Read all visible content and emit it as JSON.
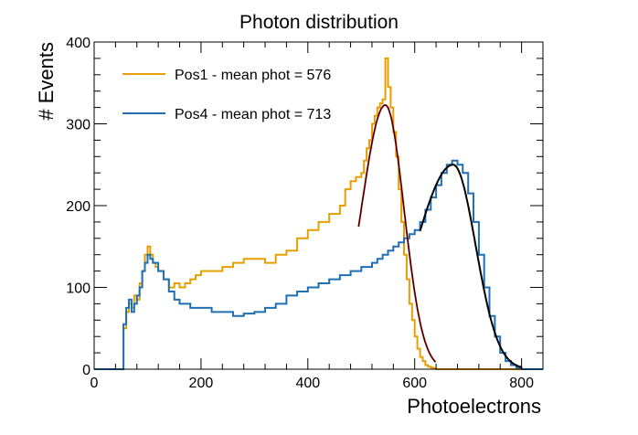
{
  "chart_data": {
    "type": "line",
    "subtype": "step-histogram",
    "title": "Photon distribution",
    "xlabel": "Photoelectrons",
    "ylabel": "# Events",
    "xlim": [
      0,
      840
    ],
    "ylim": [
      0,
      400
    ],
    "xticks": [
      0,
      200,
      400,
      600,
      800
    ],
    "yticks": [
      0,
      100,
      200,
      300,
      400
    ],
    "xtick_labels": [
      "0",
      "200",
      "400",
      "600",
      "800"
    ],
    "ytick_labels": [
      "0",
      "100",
      "200",
      "300",
      "400"
    ],
    "grid": false,
    "legend_position": "top-left",
    "colors": {
      "pos1": "#E69F00",
      "pos4": "#1F6FB4",
      "fit_black": "#000000",
      "fit_red": "#E02020"
    },
    "series": [
      {
        "name": "Pos1 - mean phot = 576",
        "color": "#E69F00",
        "x": [
          0,
          50,
          55,
          60,
          65,
          70,
          75,
          80,
          85,
          90,
          95,
          100,
          105,
          110,
          115,
          120,
          130,
          140,
          150,
          160,
          170,
          180,
          190,
          200,
          220,
          240,
          260,
          280,
          300,
          320,
          340,
          360,
          380,
          400,
          420,
          440,
          460,
          470,
          480,
          490,
          500,
          505,
          510,
          515,
          520,
          525,
          530,
          535,
          540,
          545,
          550,
          555,
          560,
          565,
          570,
          575,
          580,
          585,
          590,
          595,
          600,
          605,
          610,
          615,
          620,
          625,
          630,
          635,
          640,
          650,
          660,
          840
        ],
        "values": [
          0,
          0,
          50,
          70,
          80,
          75,
          90,
          85,
          105,
          120,
          140,
          150,
          140,
          130,
          125,
          120,
          110,
          100,
          105,
          100,
          105,
          110,
          115,
          120,
          120,
          125,
          130,
          135,
          135,
          130,
          140,
          145,
          160,
          170,
          180,
          190,
          200,
          220,
          230,
          235,
          240,
          255,
          270,
          280,
          300,
          310,
          320,
          325,
          330,
          380,
          345,
          320,
          290,
          260,
          220,
          180,
          140,
          110,
          80,
          60,
          40,
          25,
          15,
          10,
          5,
          3,
          2,
          1,
          0,
          0,
          0,
          0
        ]
      },
      {
        "name": "Pos4 - mean phot = 713",
        "color": "#1F6FB4",
        "x": [
          0,
          50,
          55,
          60,
          65,
          70,
          75,
          80,
          85,
          90,
          95,
          100,
          105,
          110,
          120,
          130,
          140,
          150,
          160,
          180,
          200,
          220,
          240,
          260,
          280,
          300,
          320,
          340,
          360,
          380,
          400,
          420,
          440,
          460,
          480,
          500,
          520,
          530,
          540,
          550,
          560,
          570,
          580,
          590,
          600,
          610,
          620,
          630,
          640,
          650,
          660,
          670,
          680,
          690,
          700,
          710,
          720,
          730,
          740,
          750,
          760,
          770,
          780,
          790,
          800,
          840
        ],
        "values": [
          0,
          0,
          55,
          75,
          85,
          70,
          80,
          90,
          100,
          120,
          130,
          140,
          135,
          130,
          120,
          110,
          95,
          85,
          80,
          75,
          75,
          70,
          70,
          65,
          68,
          70,
          75,
          80,
          90,
          95,
          100,
          105,
          110,
          115,
          120,
          125,
          130,
          135,
          140,
          145,
          150,
          155,
          160,
          165,
          170,
          180,
          195,
          210,
          225,
          240,
          250,
          255,
          250,
          240,
          215,
          180,
          140,
          100,
          65,
          40,
          20,
          10,
          5,
          2,
          0,
          0
        ]
      }
    ],
    "fits": [
      {
        "name": "Pos1 fit",
        "mean": 545,
        "peak": 323,
        "sigma_left": 45,
        "sigma_right": 35,
        "range": [
          495,
          640
        ]
      },
      {
        "name": "Pos4 fit",
        "mean": 672,
        "peak": 250,
        "sigma_left": 70,
        "sigma_right": 42,
        "range": [
          610,
          800
        ]
      }
    ]
  }
}
